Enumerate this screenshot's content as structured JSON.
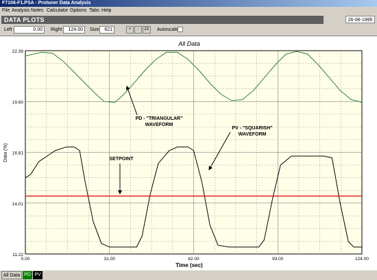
{
  "window": {
    "title": "F7106-F1.PSA - Protuner Data Analysis"
  },
  "menu": [
    "File",
    "Analysis",
    "Notes",
    "Calculator",
    "Options",
    "Tabs",
    "Help"
  ],
  "banner": {
    "label": "DATA PLOTS",
    "date": "26-06-1995"
  },
  "toolbar": {
    "left_label": "Left",
    "left_value": "0.00",
    "right_label": "Right",
    "right_value": "124.00",
    "size_label": "Size",
    "size_value": "621",
    "zoom_in": "+",
    "zoom_out": "-",
    "zoom_2x": "2X",
    "autoscale_label": "Autoscale"
  },
  "tabs": [
    {
      "label": "All Data",
      "color": "#d4d0c8",
      "text_color": "#000000"
    },
    {
      "label": "PD",
      "color": "#008000",
      "text_color": "#ffffff"
    },
    {
      "label": "PV",
      "color": "#000000",
      "text_color": "#ffffff"
    }
  ],
  "colors": {
    "plot_bg": "#ffffe8",
    "grid": "#9a9a9a",
    "pd": "#2e7d4a",
    "pv": "#000000",
    "setpoint": "#e00000"
  },
  "chart_data": {
    "type": "line",
    "title": "All Data",
    "xlabel": "Time (sec)",
    "ylabel": "Data (%)",
    "xlim": [
      0,
      124
    ],
    "ylim": [
      11.22,
      22.39
    ],
    "x_tick_labels": [
      "0.00",
      "31.00",
      "62.00",
      "93.00",
      "124.00"
    ],
    "y_tick_labels": [
      "22.39",
      "19.60",
      "16.81",
      "14.01",
      "11.22"
    ],
    "grid": true,
    "annotations": [
      {
        "text": "PD - \"TRIANGULAR\" WAVEFORM"
      },
      {
        "text": "PV - \"SQUARISH\" WAVEFORM"
      },
      {
        "text": "SETPOINT"
      }
    ],
    "series": [
      {
        "name": "PD",
        "x": [
          0,
          6,
          10,
          14,
          18,
          22,
          26,
          29,
          33,
          36,
          40,
          44,
          48,
          52,
          56,
          60,
          64,
          68,
          72,
          76,
          80,
          84,
          88,
          92,
          96,
          100,
          104,
          108,
          112,
          116,
          120,
          124
        ],
        "y": [
          22.1,
          22.3,
          22.25,
          21.8,
          21.2,
          20.6,
          20.0,
          19.6,
          19.55,
          19.95,
          20.6,
          21.3,
          21.9,
          22.3,
          22.3,
          21.9,
          21.3,
          20.6,
          20.0,
          19.65,
          19.7,
          20.2,
          20.9,
          21.6,
          22.2,
          22.35,
          22.2,
          21.6,
          20.9,
          20.2,
          19.7,
          19.55
        ]
      },
      {
        "name": "PV",
        "x": [
          0,
          2,
          5,
          8,
          11,
          15,
          18,
          20,
          22,
          25,
          28,
          31,
          34,
          38,
          41,
          43,
          46,
          49,
          53,
          56,
          60,
          62,
          65,
          68,
          71,
          75,
          79,
          83,
          86,
          88,
          91,
          94,
          98,
          102,
          106,
          110,
          113,
          116,
          119,
          121,
          124
        ],
        "y": [
          15.4,
          15.6,
          16.3,
          16.6,
          16.9,
          17.1,
          17.1,
          16.9,
          15.2,
          13.0,
          11.8,
          11.6,
          11.6,
          11.6,
          11.6,
          12.2,
          14.5,
          16.2,
          16.9,
          17.1,
          17.1,
          16.9,
          15.2,
          12.8,
          11.7,
          11.6,
          11.6,
          11.6,
          11.6,
          12.0,
          14.2,
          16.1,
          16.6,
          16.6,
          16.6,
          16.6,
          16.5,
          14.0,
          11.9,
          11.6,
          11.6
        ]
      },
      {
        "name": "Setpoint",
        "x": [
          0,
          124
        ],
        "y": [
          14.4,
          14.4
        ]
      }
    ]
  }
}
